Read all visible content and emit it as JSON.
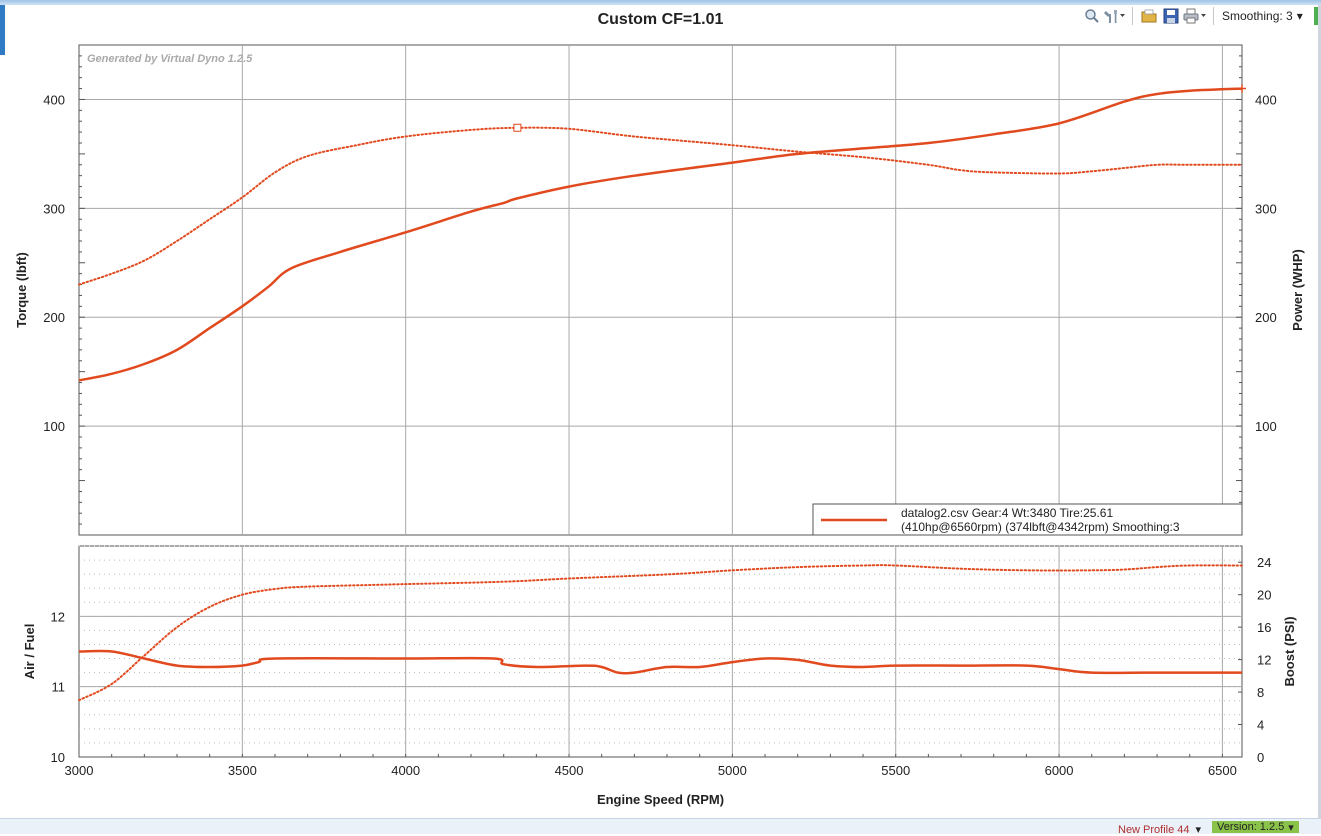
{
  "toolbar": {
    "zoom_icon": "magnifier-icon",
    "tools_icon": "tools-icon",
    "open_icon": "folder-icon",
    "save_icon": "floppy-disk-icon",
    "print_icon": "printer-icon",
    "smoothing_label": "Smoothing: 3",
    "dropdown_glyph": "▾"
  },
  "status": {
    "profile": "New Profile 44",
    "version": "Version: 1.2.5"
  },
  "colors": {
    "series": "#e14a1e",
    "grid": "#a8a8a8",
    "axis": "#555555"
  },
  "chart_data": [
    {
      "type": "line",
      "title": "Custom CF=1.01",
      "watermark": "Generated by Virtual Dyno 1.2.5",
      "xlabel": "Engine Speed (RPM)",
      "ylabel": "Torque (lbft)",
      "ylabel_right": "Power (WHP)",
      "xlim": [
        3000,
        6560
      ],
      "ylim": [
        0,
        450
      ],
      "x_ticks": [
        3000,
        3500,
        4000,
        4500,
        5000,
        5500,
        6000,
        6500
      ],
      "y_ticks": [
        100,
        200,
        300,
        400
      ],
      "grid": true,
      "legend": {
        "position": "bottom-right",
        "line1": "datalog2.csv Gear:4 Wt:3480 Tire:25.61",
        "line2": "(410hp@6560rpm) (374lbft@4342rpm) Smoothing:3"
      },
      "series": [
        {
          "style": "solid",
          "x": [
            3000,
            3100,
            3200,
            3300,
            3400,
            3500,
            3580,
            3650,
            3800,
            4000,
            4200,
            4300,
            4340,
            4500,
            4700,
            5000,
            5200,
            5400,
            5600,
            5800,
            6000,
            6200,
            6300,
            6400,
            6560
          ],
          "y": [
            142,
            148,
            157,
            170,
            190,
            210,
            228,
            245,
            260,
            278,
            297,
            305,
            309,
            320,
            330,
            342,
            350,
            355,
            360,
            368,
            378,
            398,
            405,
            408,
            410
          ]
        },
        {
          "style": "dotted",
          "x": [
            3000,
            3100,
            3200,
            3300,
            3400,
            3500,
            3600,
            3700,
            3850,
            4000,
            4200,
            4342,
            4500,
            4700,
            5000,
            5200,
            5400,
            5600,
            5700,
            5800,
            6000,
            6100,
            6200,
            6300,
            6400,
            6560
          ],
          "y": [
            230,
            240,
            252,
            270,
            290,
            310,
            333,
            348,
            358,
            366,
            372,
            374,
            373,
            366,
            358,
            352,
            347,
            340,
            335,
            333,
            332,
            334,
            337,
            340,
            340,
            340
          ]
        }
      ],
      "markers": [
        {
          "x": 4342,
          "y": 374,
          "shape": "square"
        },
        {
          "x": 6560,
          "y": 410,
          "shape": "plus"
        }
      ]
    },
    {
      "type": "line",
      "xlabel": "Engine Speed (RPM)",
      "ylabel": "Air / Fuel",
      "ylabel_right": "Boost (PSI)",
      "xlim": [
        3000,
        6560
      ],
      "ylim": [
        10,
        13
      ],
      "ylim_right": [
        0,
        26
      ],
      "x_ticks": [
        3000,
        3500,
        4000,
        4500,
        5000,
        5500,
        6000,
        6500
      ],
      "y_ticks": [
        10,
        11,
        12
      ],
      "y_ticks_right": [
        0,
        4,
        8,
        12,
        16,
        20,
        24
      ],
      "grid": true,
      "series": [
        {
          "style": "solid",
          "x": [
            3000,
            3100,
            3200,
            3300,
            3400,
            3500,
            3550,
            3600,
            4000,
            4270,
            4300,
            4400,
            4550,
            4600,
            4650,
            4700,
            4800,
            4900,
            5000,
            5100,
            5200,
            5300,
            5400,
            5500,
            5700,
            5900,
            6000,
            6100,
            6300,
            6560
          ],
          "y": [
            11.5,
            11.5,
            11.4,
            11.3,
            11.28,
            11.3,
            11.35,
            11.4,
            11.4,
            11.4,
            11.32,
            11.28,
            11.3,
            11.28,
            11.2,
            11.2,
            11.28,
            11.28,
            11.35,
            11.4,
            11.38,
            11.3,
            11.28,
            11.3,
            11.3,
            11.3,
            11.25,
            11.2,
            11.2,
            11.2
          ]
        },
        {
          "style": "dotted",
          "axis": "right",
          "x": [
            3000,
            3100,
            3200,
            3300,
            3400,
            3500,
            3600,
            3700,
            4000,
            4300,
            4500,
            4800,
            5000,
            5200,
            5400,
            5500,
            5700,
            5900,
            6100,
            6200,
            6300,
            6400,
            6560
          ],
          "y": [
            7,
            9,
            12.5,
            16,
            18.5,
            20,
            20.7,
            21,
            21.3,
            21.6,
            22,
            22.5,
            23,
            23.4,
            23.6,
            23.6,
            23.2,
            23,
            23,
            23.1,
            23.4,
            23.6,
            23.6
          ]
        }
      ]
    }
  ]
}
